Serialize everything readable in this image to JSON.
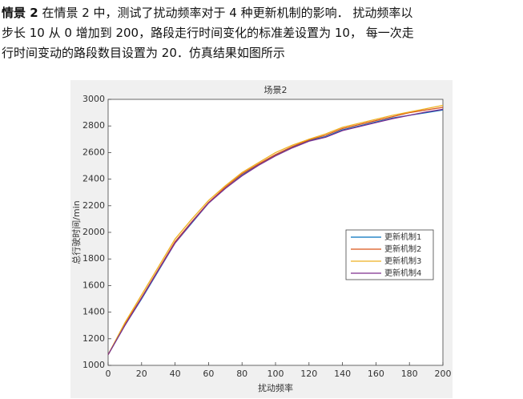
{
  "paragraph": {
    "lead": "情景 2",
    "lines": [
      "在情景 2 中，测试了扰动频率对于 4 种更新机制的影响． 扰动频率以",
      "步长 10 从 0 增加到 200，路段走行时间变化的标准差设置为 10， 每一次走",
      "行时间变动的路段数目设置为 20．仿真结果如图所示"
    ]
  },
  "chart_data": {
    "type": "line",
    "title": "场景2",
    "x_label": "扰动频率",
    "y_label": "总行驶时间/min",
    "x": [
      0,
      10,
      20,
      30,
      40,
      50,
      60,
      70,
      80,
      90,
      100,
      110,
      120,
      130,
      140,
      150,
      160,
      170,
      180,
      190,
      200
    ],
    "series": [
      {
        "name": "更新机制1",
        "color": "#0072bd",
        "values": [
          1080,
          1300,
          1500,
          1710,
          1920,
          2070,
          2220,
          2330,
          2430,
          2510,
          2580,
          2640,
          2690,
          2720,
          2770,
          2800,
          2830,
          2860,
          2880,
          2900,
          2920
        ]
      },
      {
        "name": "更新机制2",
        "color": "#d95319",
        "values": [
          1080,
          1310,
          1510,
          1720,
          1930,
          2080,
          2225,
          2340,
          2440,
          2515,
          2585,
          2645,
          2695,
          2730,
          2780,
          2810,
          2840,
          2870,
          2900,
          2920,
          2940
        ]
      },
      {
        "name": "更新机制3",
        "color": "#edb120",
        "values": [
          1080,
          1320,
          1530,
          1740,
          1950,
          2100,
          2240,
          2350,
          2450,
          2525,
          2600,
          2655,
          2700,
          2740,
          2790,
          2820,
          2850,
          2880,
          2905,
          2930,
          2955
        ]
      },
      {
        "name": "更新机制4",
        "color": "#7e2f8e",
        "values": [
          1080,
          1300,
          1505,
          1715,
          1920,
          2075,
          2220,
          2330,
          2425,
          2505,
          2575,
          2635,
          2685,
          2715,
          2765,
          2795,
          2825,
          2855,
          2880,
          2905,
          2925
        ]
      }
    ],
    "xlim": [
      0,
      200
    ],
    "xticks": [
      0,
      20,
      40,
      60,
      80,
      100,
      120,
      140,
      160,
      180,
      200
    ],
    "ylim": [
      1000,
      3000
    ],
    "yticks": [
      1000,
      1200,
      1400,
      1600,
      1800,
      2000,
      2200,
      2400,
      2600,
      2800,
      3000
    ],
    "legend": "lower right"
  }
}
